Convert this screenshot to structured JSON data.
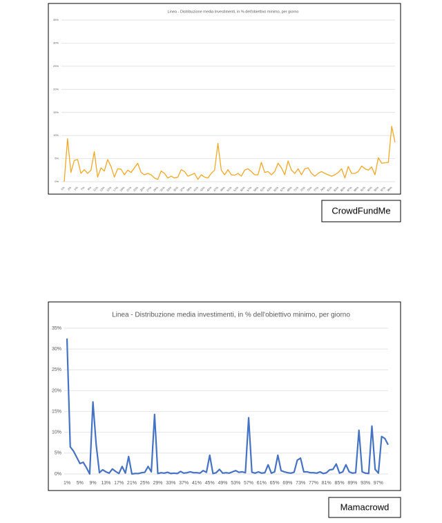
{
  "chart_data": [
    {
      "type": "line",
      "title": "Linea - Distribuzione media  Investimenti, in % dell'obiettivo minimo, per giorno",
      "caption": "CrowdFundMe",
      "color": "#f5a623",
      "categories": [
        "1%",
        null,
        "3%",
        null,
        "5%",
        null,
        "7%",
        null,
        "9%",
        null,
        "11%",
        null,
        "13%",
        null,
        "15%",
        null,
        "17%",
        null,
        "19%",
        null,
        "21%",
        null,
        "23%",
        null,
        "25%",
        null,
        "27%",
        null,
        "29%",
        null,
        "31%",
        null,
        "33%",
        null,
        "35%",
        null,
        "37%",
        null,
        "39%",
        null,
        "41%",
        null,
        "43%",
        null,
        "45%",
        null,
        "47%",
        null,
        "49%",
        null,
        "51%",
        null,
        "53%",
        null,
        "55%",
        null,
        "57%",
        null,
        "59%",
        null,
        "61%",
        null,
        "63%",
        null,
        "65%",
        null,
        "67%",
        null,
        "69%",
        null,
        "71%",
        null,
        "73%",
        null,
        "75%",
        null,
        "77%",
        null,
        "79%",
        null,
        "81%",
        null,
        "83%",
        null,
        "85%",
        null,
        "87%",
        null,
        "89%",
        null,
        "91%",
        null,
        "93%",
        null,
        "95%",
        null,
        "97%",
        null,
        "99%",
        null
      ],
      "values": [
        0,
        9.3,
        2,
        4.6,
        4.8,
        1.8,
        2.6,
        1.8,
        2.5,
        6.5,
        1,
        3,
        2.3,
        4.8,
        3.3,
        1,
        2.8,
        2.7,
        1.5,
        2.5,
        2,
        3,
        4,
        2,
        1.5,
        1.8,
        1.5,
        0.8,
        0.5,
        2.3,
        1.8,
        0.8,
        1.2,
        0.8,
        1,
        2.6,
        2.2,
        1.2,
        1.5,
        1.8,
        0.5,
        1.5,
        1,
        0.8,
        1.8,
        2.5,
        8.3,
        2.5,
        1.5,
        2.6,
        1.5,
        1.4,
        1.8,
        1.2,
        2.5,
        2.8,
        2.2,
        1.5,
        1.5,
        4.2,
        2,
        2.2,
        1.5,
        2.2,
        4,
        3,
        1.5,
        4.5,
        2.5,
        1.8,
        2.8,
        1.5,
        2.8,
        3,
        1.8,
        1.2,
        1.8,
        2.2,
        1.8,
        1.5,
        1.2,
        1.5,
        2,
        2.8,
        0.8,
        3.3,
        1.8,
        1.8,
        2.2,
        3.4,
        2.8,
        2.5,
        3.2,
        1.5,
        5.2,
        4,
        4.1,
        4.2,
        12,
        8.5
      ],
      "ylim": [
        0,
        35
      ],
      "yticks": [
        {
          "value": 0,
          "label": "0%"
        },
        {
          "value": 5,
          "label": "5%"
        },
        {
          "value": 10,
          "label": "10%"
        },
        {
          "value": 15,
          "label": "15%"
        },
        {
          "value": 20,
          "label": "20%"
        },
        {
          "value": 25,
          "label": "25%"
        },
        {
          "value": 30,
          "label": "30%"
        },
        {
          "value": 35,
          "label": "35%"
        }
      ],
      "grid": true
    },
    {
      "type": "line",
      "title": "Linea - Distribuzione media investimenti, in %  dell'obiettivo minimo, per giorno",
      "caption": "Mamacrowd",
      "color": "#4472c4",
      "categories": [
        "1%",
        null,
        null,
        null,
        "5%",
        null,
        null,
        null,
        "9%",
        null,
        null,
        null,
        "13%",
        null,
        null,
        null,
        "17%",
        null,
        null,
        null,
        "21%",
        null,
        null,
        null,
        "25%",
        null,
        null,
        null,
        "29%",
        null,
        null,
        null,
        "33%",
        null,
        null,
        null,
        "37%",
        null,
        null,
        null,
        "41%",
        null,
        null,
        null,
        "45%",
        null,
        null,
        null,
        "49%",
        null,
        null,
        null,
        "53%",
        null,
        null,
        null,
        "57%",
        null,
        null,
        null,
        "61%",
        null,
        null,
        null,
        "65%",
        null,
        null,
        null,
        "69%",
        null,
        null,
        null,
        "73%",
        null,
        null,
        null,
        "77%",
        null,
        null,
        null,
        "81%",
        null,
        null,
        null,
        "85%",
        null,
        null,
        null,
        "89%",
        null,
        null,
        null,
        "93%",
        null,
        null,
        null,
        "97%",
        null,
        null,
        null
      ],
      "values": [
        32.5,
        6.5,
        5.5,
        4,
        2.5,
        2.8,
        1.5,
        0,
        17.3,
        7,
        0.3,
        1,
        0.5,
        0.2,
        1.2,
        0.6,
        0.1,
        1.8,
        0.2,
        4.2,
        0,
        0.1,
        0.1,
        0.3,
        0.4,
        1.8,
        0.5,
        14.3,
        0.1,
        0.3,
        0.2,
        0.4,
        0.1,
        0.2,
        0.1,
        0.6,
        0.2,
        0.3,
        0.5,
        0.3,
        0.3,
        0.2,
        0.8,
        0.4,
        4.5,
        0.1,
        0.3,
        1.1,
        0.2,
        0.3,
        0.2,
        0.5,
        0.8,
        0.4,
        0.5,
        0.3,
        13.5,
        0.4,
        0.2,
        0.5,
        0.2,
        0.3,
        2.2,
        0.2,
        0.5,
        4.5,
        0.8,
        0.5,
        0.3,
        0.2,
        0.4,
        3.3,
        3.8,
        0.5,
        0.5,
        0.3,
        0.3,
        0.2,
        0.5,
        0.1,
        0.3,
        1,
        1.1,
        2.4,
        0.2,
        0.5,
        2.2,
        0.5,
        0.2,
        0.3,
        10.5,
        0.5,
        0.2,
        0.1,
        11.5,
        1.1,
        0.2,
        9,
        8.5,
        7
      ],
      "ylim": [
        0,
        35
      ],
      "yticks": [
        {
          "value": 0,
          "label": "0%"
        },
        {
          "value": 5,
          "label": "5%"
        },
        {
          "value": 10,
          "label": "10%"
        },
        {
          "value": 15,
          "label": "15%"
        },
        {
          "value": 20,
          "label": "20%"
        },
        {
          "value": 25,
          "label": "25%"
        },
        {
          "value": 30,
          "label": "30%"
        },
        {
          "value": 35,
          "label": "35%"
        }
      ],
      "grid": true
    }
  ]
}
